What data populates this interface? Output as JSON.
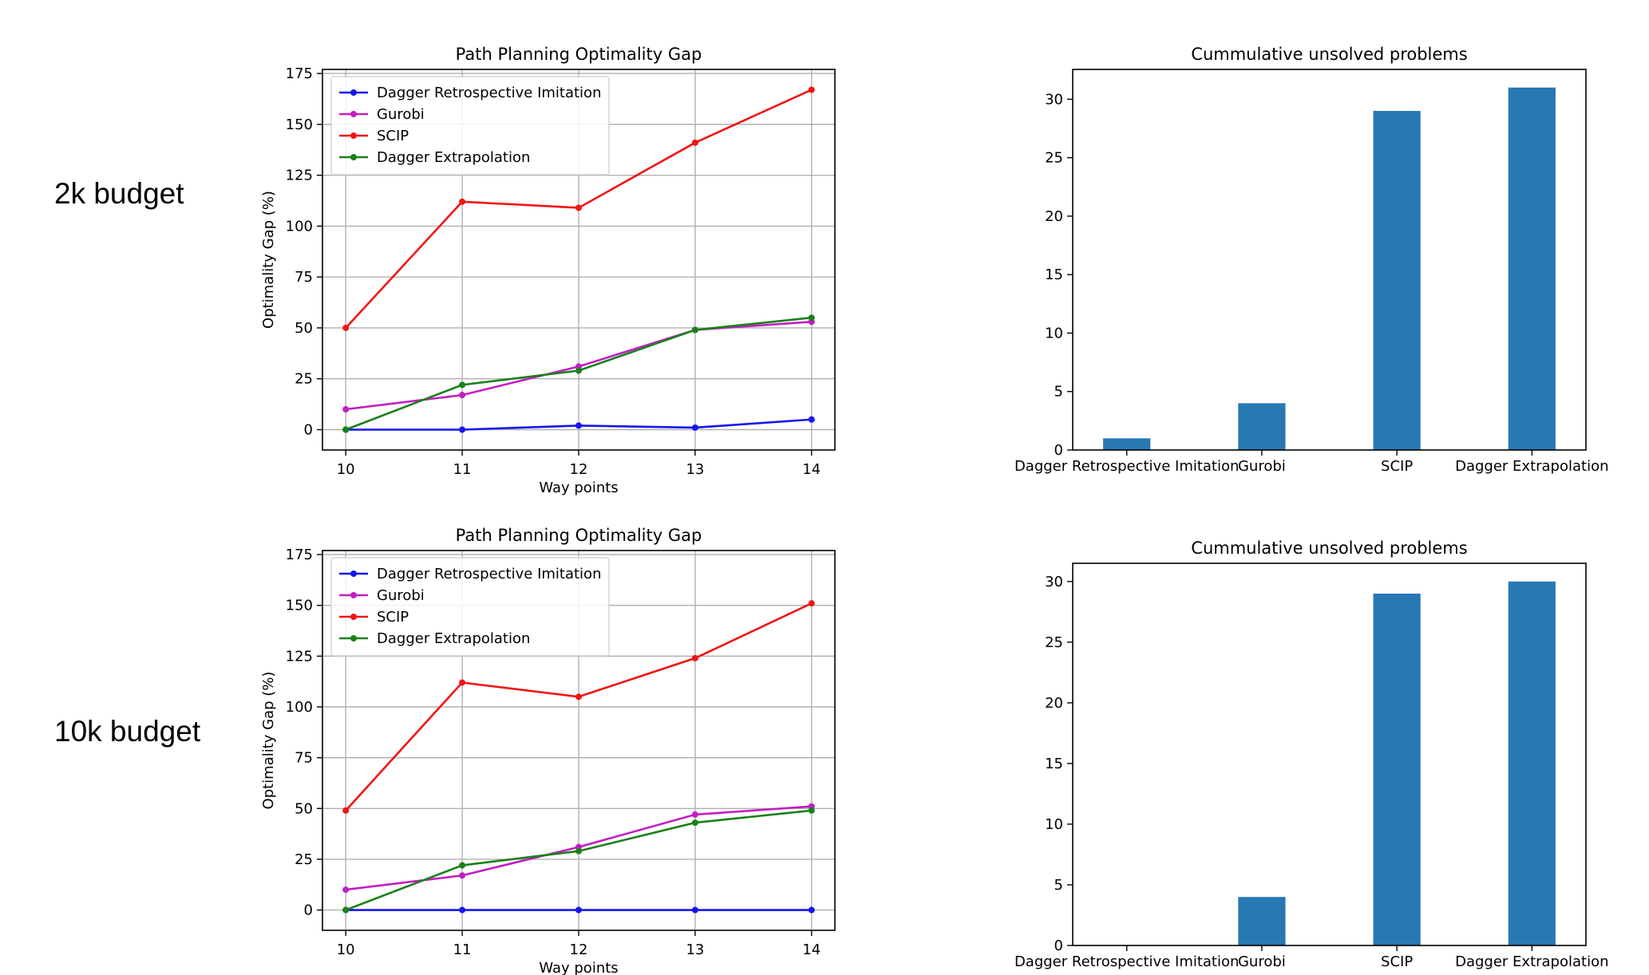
{
  "row_labels": [
    "2k budget",
    "10k budget"
  ],
  "chart_data": [
    {
      "type": "line",
      "title": "Path Planning Optimality Gap",
      "xlabel": "Way points",
      "ylabel": "Optimality Gap (%)",
      "x": [
        10,
        11,
        12,
        13,
        14
      ],
      "xticks": [
        10,
        11,
        12,
        13,
        14
      ],
      "xlim": [
        9.8,
        14.2
      ],
      "ylim": [
        -10,
        177
      ],
      "yticks": [
        0,
        25,
        50,
        75,
        100,
        125,
        150,
        175
      ],
      "grid": true,
      "legend": "top-left",
      "series": [
        {
          "name": "Dagger Retrospective Imitation",
          "color": "#1515f0",
          "values": [
            0,
            0,
            2,
            1,
            5
          ]
        },
        {
          "name": "Gurobi",
          "color": "#c21ec2",
          "values": [
            10,
            17,
            31,
            49,
            53
          ]
        },
        {
          "name": "SCIP",
          "color": "#f01515",
          "values": [
            50,
            112,
            109,
            141,
            167
          ]
        },
        {
          "name": "Dagger Extrapolation",
          "color": "#1a801a",
          "values": [
            0,
            22,
            29,
            49,
            55
          ]
        }
      ]
    },
    {
      "type": "bar",
      "title": "Cummulative unsolved problems",
      "categories": [
        "Dagger Retrospective Imitation",
        "Gurobi",
        "SCIP",
        "Dagger Extrapolation"
      ],
      "values": [
        1,
        4,
        29,
        31
      ],
      "color": "#2878b4",
      "ylim": [
        0,
        32.55
      ],
      "yticks": [
        0,
        5,
        10,
        15,
        20,
        25,
        30
      ]
    },
    {
      "type": "line",
      "title": "Path Planning Optimality Gap",
      "xlabel": "Way points",
      "ylabel": "Optimality Gap (%)",
      "x": [
        10,
        11,
        12,
        13,
        14
      ],
      "xticks": [
        10,
        11,
        12,
        13,
        14
      ],
      "xlim": [
        9.8,
        14.2
      ],
      "ylim": [
        -10,
        177
      ],
      "yticks": [
        0,
        25,
        50,
        75,
        100,
        125,
        150,
        175
      ],
      "grid": true,
      "legend": "top-left",
      "series": [
        {
          "name": "Dagger Retrospective Imitation",
          "color": "#1515f0",
          "values": [
            0,
            0,
            0,
            0,
            0
          ]
        },
        {
          "name": "Gurobi",
          "color": "#c21ec2",
          "values": [
            10,
            17,
            31,
            47,
            51
          ]
        },
        {
          "name": "SCIP",
          "color": "#f01515",
          "values": [
            49,
            112,
            105,
            124,
            151
          ]
        },
        {
          "name": "Dagger Extrapolation",
          "color": "#1a801a",
          "values": [
            0,
            22,
            29,
            43,
            49
          ]
        }
      ]
    },
    {
      "type": "bar",
      "title": "Cummulative unsolved problems",
      "categories": [
        "Dagger Retrospective Imitation",
        "Gurobi",
        "SCIP",
        "Dagger Extrapolation"
      ],
      "values": [
        0,
        4,
        29,
        30
      ],
      "color": "#2878b4",
      "ylim": [
        0,
        31.5
      ],
      "yticks": [
        0,
        5,
        10,
        15,
        20,
        25,
        30
      ]
    }
  ]
}
